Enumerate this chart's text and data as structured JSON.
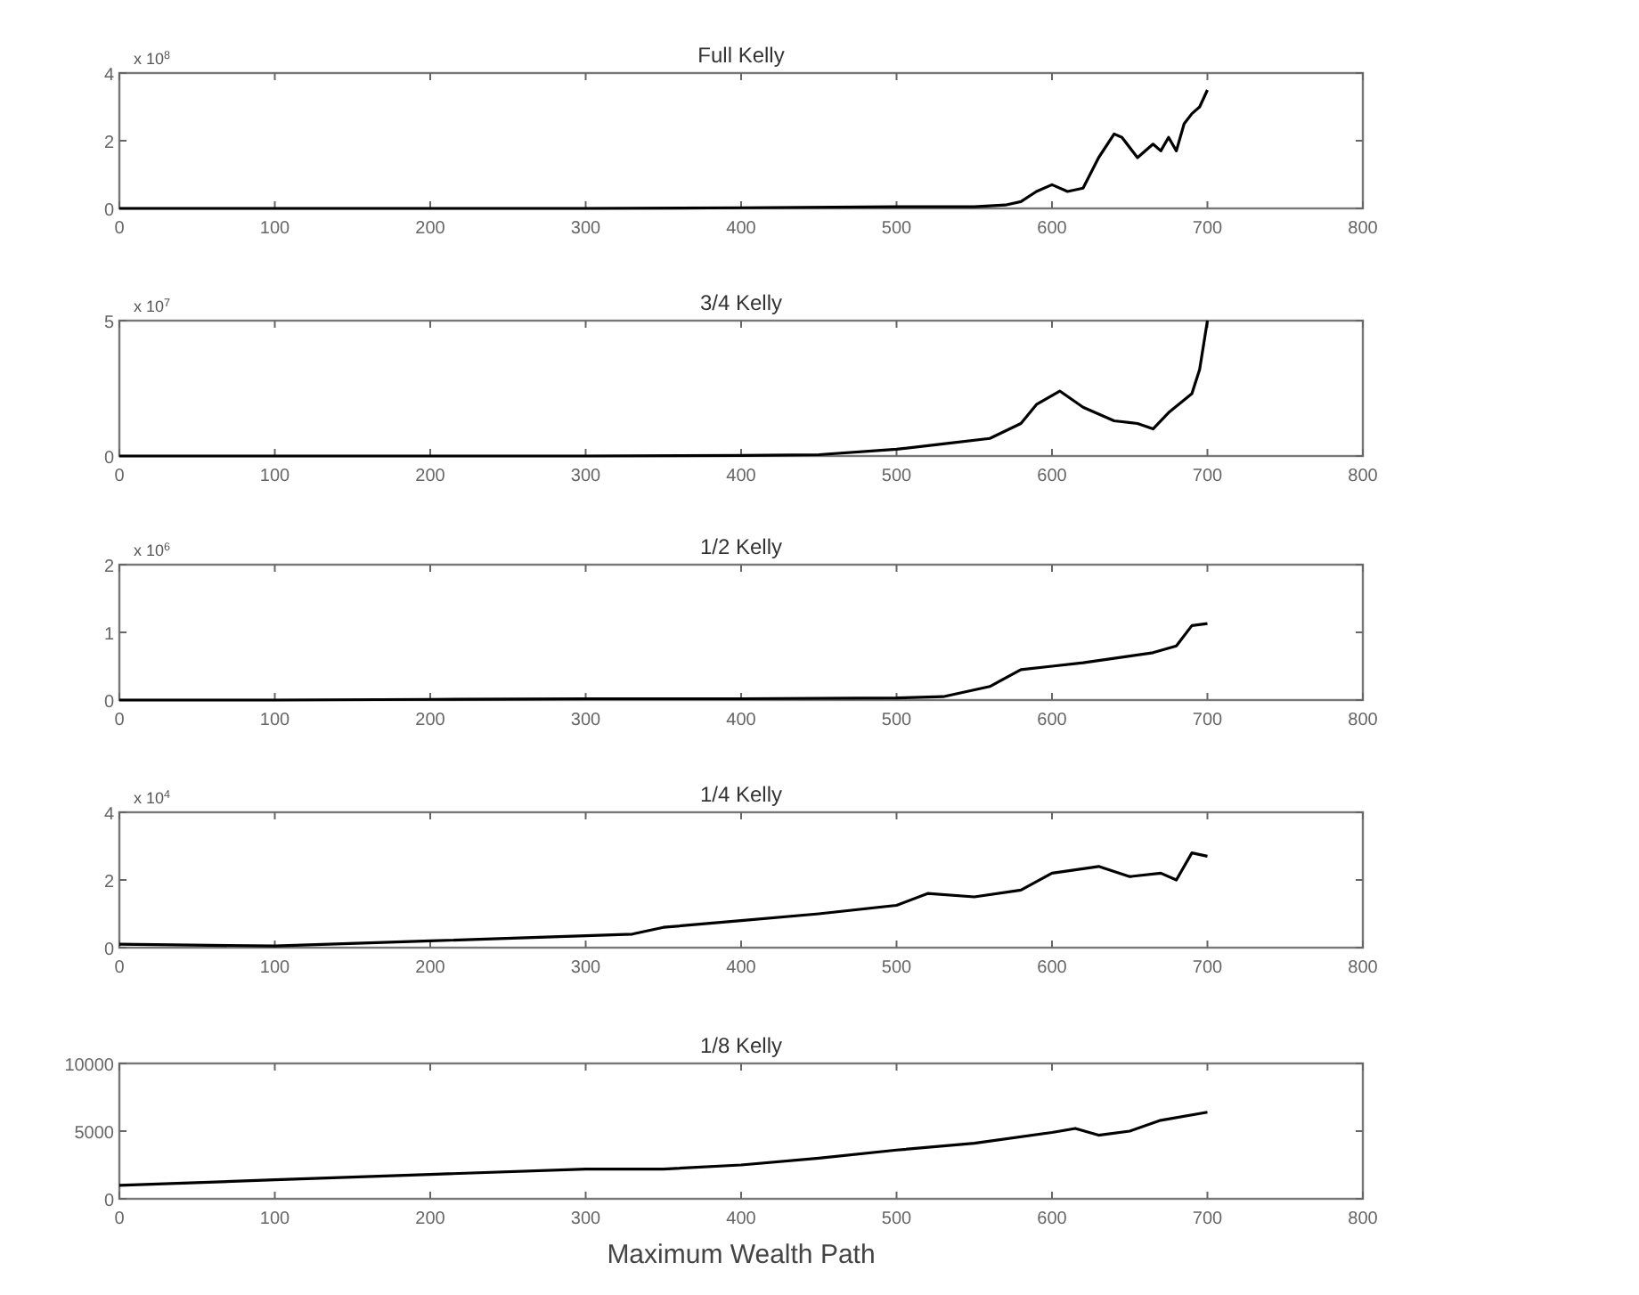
{
  "chart_data": [
    {
      "type": "line",
      "title": "Full Kelly",
      "annotations": [
        "x 10$^{8}$"
      ],
      "x": [
        0,
        100,
        200,
        300,
        400,
        500,
        550,
        570,
        580,
        590,
        600,
        610,
        620,
        630,
        640,
        645,
        655,
        665,
        670,
        675,
        680,
        685,
        690,
        695,
        700
      ],
      "series": [
        {
          "color": "#000000",
          "values": [
            0,
            0,
            0,
            0,
            0.02,
            0.05,
            0.05,
            0.1,
            0.2,
            0.5,
            0.7,
            0.5,
            0.6,
            1.5,
            2.2,
            2.1,
            1.5,
            1.9,
            1.7,
            2.1,
            1.7,
            2.5,
            2.8,
            3.0,
            3.5
          ]
        }
      ],
      "xlim": [
        0,
        800
      ],
      "xticks": [
        0,
        100,
        200,
        300,
        400,
        500,
        600,
        700,
        800
      ],
      "ylim": [
        0,
        4
      ],
      "yticks": [
        0,
        2,
        4
      ]
    },
    {
      "type": "line",
      "title": "3/4 Kelly",
      "annotations": [
        "x 10$^{7}$"
      ],
      "x": [
        0,
        100,
        200,
        300,
        400,
        450,
        500,
        530,
        560,
        580,
        590,
        605,
        620,
        640,
        655,
        665,
        675,
        690,
        695,
        700
      ],
      "series": [
        {
          "color": "#000000",
          "values": [
            0,
            0,
            0,
            0,
            0.02,
            0.05,
            0.25,
            0.45,
            0.65,
            1.2,
            1.9,
            2.4,
            1.8,
            1.3,
            1.2,
            1.0,
            1.6,
            2.3,
            3.2,
            5.0
          ]
        }
      ],
      "xlim": [
        0,
        800
      ],
      "xticks": [
        0,
        100,
        200,
        300,
        400,
        500,
        600,
        700,
        800
      ],
      "ylim": [
        0,
        5
      ],
      "yticks": [
        0,
        5
      ]
    },
    {
      "type": "line",
      "title": "1/2 Kelly",
      "annotations": [
        "x 10$^{6}$"
      ],
      "x": [
        0,
        100,
        200,
        300,
        400,
        500,
        530,
        560,
        580,
        600,
        620,
        650,
        665,
        680,
        690,
        700
      ],
      "series": [
        {
          "color": "#000000",
          "values": [
            0,
            0,
            0.01,
            0.02,
            0.02,
            0.03,
            0.05,
            0.2,
            0.45,
            0.5,
            0.55,
            0.65,
            0.7,
            0.8,
            1.1,
            1.13
          ]
        }
      ],
      "xlim": [
        0,
        800
      ],
      "xticks": [
        0,
        100,
        200,
        300,
        400,
        500,
        600,
        700,
        800
      ],
      "ylim": [
        0,
        2
      ],
      "yticks": [
        0,
        1,
        2
      ]
    },
    {
      "type": "line",
      "title": "1/4 Kelly",
      "annotations": [
        "x 10$^{4}$"
      ],
      "x": [
        0,
        100,
        200,
        300,
        330,
        350,
        400,
        450,
        500,
        520,
        550,
        580,
        600,
        630,
        650,
        670,
        680,
        690,
        700
      ],
      "series": [
        {
          "color": "#000000",
          "values": [
            0.1,
            0.05,
            0.2,
            0.35,
            0.4,
            0.6,
            0.8,
            1.0,
            1.25,
            1.6,
            1.5,
            1.7,
            2.2,
            2.4,
            2.1,
            2.2,
            2.0,
            2.8,
            2.7
          ]
        }
      ],
      "xlim": [
        0,
        800
      ],
      "xticks": [
        0,
        100,
        200,
        300,
        400,
        500,
        600,
        700,
        800
      ],
      "ylim": [
        0,
        4
      ],
      "yticks": [
        0,
        2,
        4
      ]
    },
    {
      "type": "line",
      "title": "1/8 Kelly",
      "xlabel": "Maximum Wealth Path",
      "x": [
        0,
        100,
        200,
        300,
        350,
        400,
        450,
        500,
        550,
        600,
        615,
        630,
        650,
        670,
        700
      ],
      "series": [
        {
          "color": "#000000",
          "values": [
            1000,
            1400,
            1800,
            2200,
            2200,
            2500,
            3000,
            3600,
            4100,
            4900,
            5200,
            4700,
            5000,
            5800,
            6400
          ]
        }
      ],
      "xlim": [
        0,
        800
      ],
      "xticks": [
        0,
        100,
        200,
        300,
        400,
        500,
        600,
        700,
        800
      ],
      "ylim": [
        0,
        10000
      ],
      "yticks": [
        0,
        5000,
        10000
      ]
    }
  ]
}
